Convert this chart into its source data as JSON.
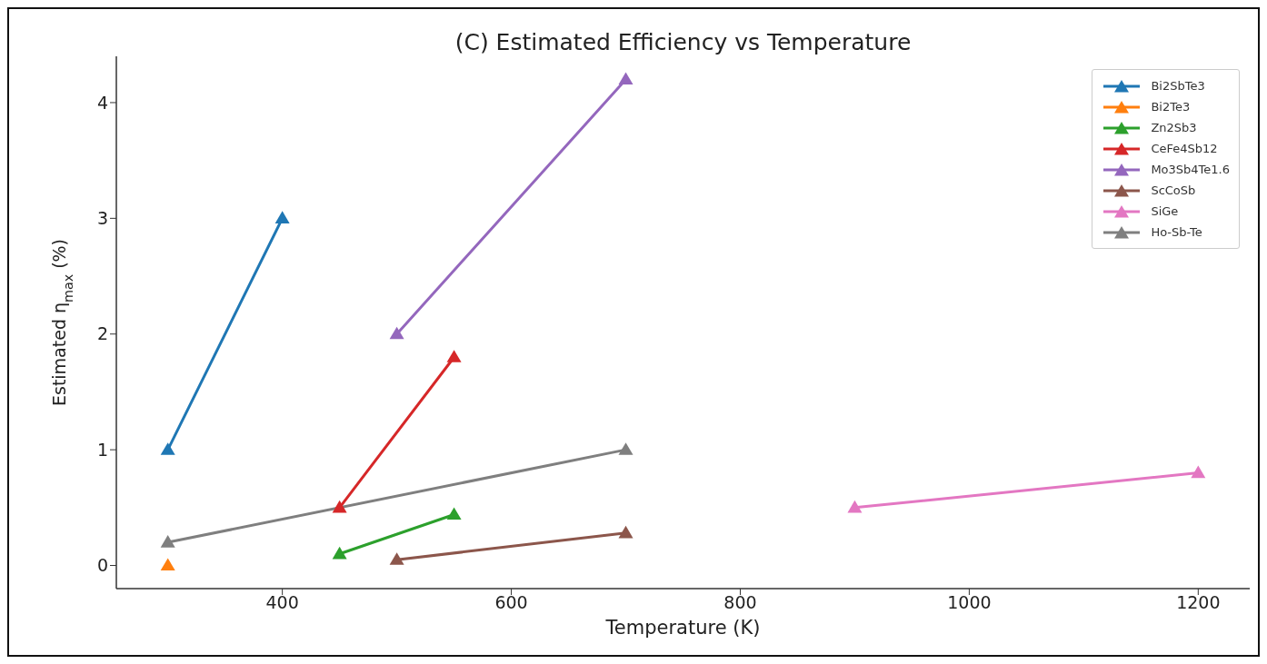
{
  "chart_data": {
    "type": "line",
    "title": "(C) Estimated Efficiency vs Temperature",
    "xlabel": "Temperature (K)",
    "ylabel": "Estimated η$_{max}$ (%)",
    "xlim": [
      255,
      1245
    ],
    "xticks": [
      400,
      600,
      800,
      1000,
      1200
    ],
    "ylim": [
      -0.2,
      4.4
    ],
    "yticks": [
      0,
      1,
      2,
      3,
      4
    ],
    "grid": false,
    "legend": "top right",
    "marker": "triangle",
    "line_style": "solid",
    "series": [
      {
        "name": "Bi2SbTe3",
        "color": "#1f77b4",
        "x": [
          300,
          400
        ],
        "values": [
          1,
          3
        ]
      },
      {
        "name": "Bi2Te3",
        "color": "#ff7f0e",
        "x": [
          300
        ],
        "values": [
          0
        ]
      },
      {
        "name": "Zn2Sb3",
        "color": "#2ca02c",
        "x": [
          450,
          550
        ],
        "values": [
          0.1,
          0.44
        ]
      },
      {
        "name": "CeFe4Sb12",
        "color": "#d62728",
        "x": [
          450,
          550
        ],
        "values": [
          0.5,
          1.8
        ]
      },
      {
        "name": "Mo3Sb4Te1.6",
        "color": "#9467bd",
        "x": [
          500,
          700
        ],
        "values": [
          2,
          4.2
        ]
      },
      {
        "name": "ScCoSb",
        "color": "#8c564b",
        "x": [
          500,
          700
        ],
        "values": [
          0.05,
          0.28
        ]
      },
      {
        "name": "SiGe",
        "color": "#e377c2",
        "x": [
          900,
          1200
        ],
        "values": [
          0.5,
          0.8
        ]
      },
      {
        "name": "Ho-Sb-Te",
        "color": "#7f7f7f",
        "x": [
          300,
          700
        ],
        "values": [
          0.2,
          1
        ]
      }
    ]
  }
}
